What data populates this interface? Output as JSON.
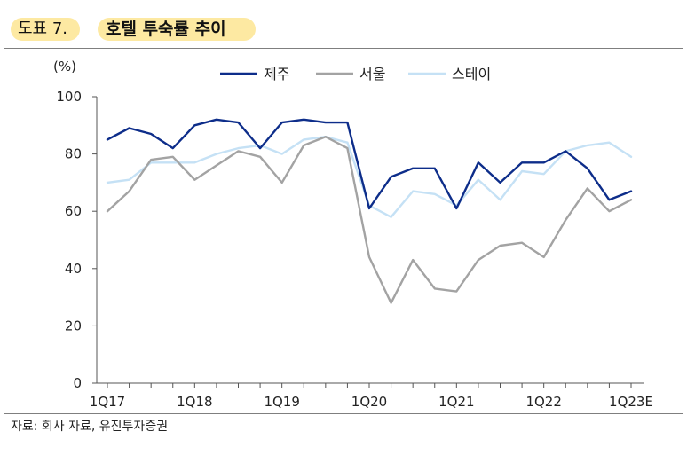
{
  "header": {
    "figure_label": "도표 7.",
    "title": "호텔 투숙률 추이"
  },
  "source": "자료: 회사 자료, 유진투자증권",
  "chart_data": {
    "type": "line",
    "title": "호텔 투숙률 추이",
    "ylabel": "(%)",
    "xlabel": "",
    "ylim": [
      0,
      100
    ],
    "yticks": [
      0,
      20,
      40,
      60,
      80,
      100
    ],
    "x": [
      "1Q17",
      "2Q17",
      "3Q17",
      "4Q17",
      "1Q18",
      "2Q18",
      "3Q18",
      "4Q18",
      "1Q19",
      "2Q19",
      "3Q19",
      "4Q19",
      "1Q20",
      "2Q20",
      "3Q20",
      "4Q20",
      "1Q21",
      "2Q21",
      "3Q21",
      "4Q21",
      "1Q22",
      "2Q22",
      "3Q22",
      "4Q22",
      "1Q23E"
    ],
    "xtick_labels": [
      {
        "index": 0,
        "label": "1Q17"
      },
      {
        "index": 4,
        "label": "1Q18"
      },
      {
        "index": 8,
        "label": "1Q19"
      },
      {
        "index": 12,
        "label": "1Q20"
      },
      {
        "index": 16,
        "label": "1Q21"
      },
      {
        "index": 20,
        "label": "1Q22"
      },
      {
        "index": 24,
        "label": "1Q23E"
      }
    ],
    "legend_position": "top",
    "series": [
      {
        "name": "제주",
        "color": "#0d2d8a",
        "values": [
          85,
          89,
          87,
          82,
          90,
          92,
          91,
          82,
          91,
          92,
          91,
          91,
          61,
          72,
          75,
          75,
          61,
          77,
          70,
          77,
          77,
          81,
          75,
          64,
          67
        ]
      },
      {
        "name": "서울",
        "color": "#a3a3a3",
        "values": [
          60,
          67,
          78,
          79,
          71,
          76,
          81,
          79,
          70,
          83,
          86,
          82,
          44,
          28,
          43,
          33,
          32,
          43,
          48,
          49,
          44,
          57,
          68,
          60,
          64
        ]
      },
      {
        "name": "스테이",
        "color": "#c5e1f5",
        "values": [
          70,
          71,
          77,
          77,
          77,
          80,
          82,
          83,
          80,
          85,
          86,
          84,
          62,
          58,
          67,
          66,
          62,
          71,
          64,
          74,
          73,
          81,
          83,
          84,
          79
        ]
      }
    ]
  }
}
